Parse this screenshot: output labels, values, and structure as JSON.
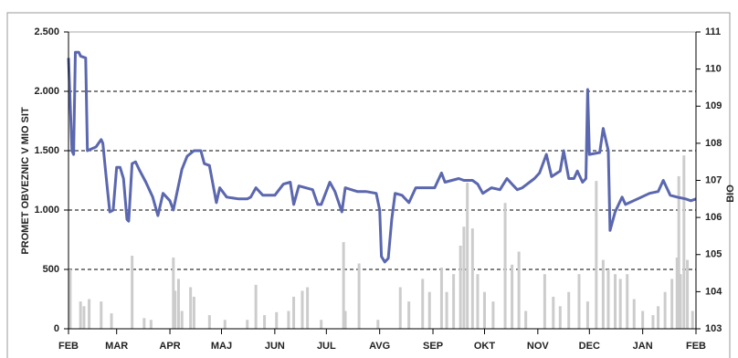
{
  "chart_data": {
    "type": "bar",
    "ylabel": "PROMET OBVEZNIC V MIO SIT",
    "y2label": "BIO",
    "xlim": [
      0,
      365
    ],
    "xticks": [
      {
        "value": 0,
        "label": "FEB"
      },
      {
        "value": 28,
        "label": "MAR"
      },
      {
        "value": 59,
        "label": "APR"
      },
      {
        "value": 89,
        "label": "MAJ"
      },
      {
        "value": 120,
        "label": "JUN"
      },
      {
        "value": 150,
        "label": "JUL"
      },
      {
        "value": 181,
        "label": "AVG"
      },
      {
        "value": 212,
        "label": "SEP"
      },
      {
        "value": 242,
        "label": "OKT"
      },
      {
        "value": 273,
        "label": "NOV"
      },
      {
        "value": 303,
        "label": "DEC"
      },
      {
        "value": 334,
        "label": "JAN"
      },
      {
        "value": 365,
        "label": "FEB"
      }
    ],
    "ylim": [
      0,
      2500
    ],
    "yticks": [
      0,
      500,
      {
        "value": 1000,
        "label": "1.000"
      },
      {
        "value": 1500,
        "label": "1.500"
      },
      {
        "value": 2000,
        "label": "2.000"
      },
      {
        "value": 2500,
        "label": "2.500"
      }
    ],
    "y2lim": [
      103,
      111
    ],
    "y2ticks": [
      103,
      104,
      105,
      106,
      107,
      108,
      109,
      110,
      111
    ],
    "grid": true,
    "series": [
      {
        "type": "bar",
        "color": "#cccccc",
        "x": [
          1,
          7,
          9,
          12,
          19,
          25,
          37,
          44,
          48,
          61,
          62,
          64,
          66,
          71,
          73,
          82,
          91,
          104,
          109,
          114,
          121,
          128,
          131,
          136,
          139,
          147,
          160,
          161,
          169,
          180,
          193,
          198,
          206,
          210,
          217,
          220,
          224,
          228,
          230,
          232,
          235,
          238,
          242,
          247,
          254,
          258,
          262,
          266,
          277,
          282,
          286,
          291,
          297,
          302,
          307,
          311,
          314,
          318,
          321,
          325,
          329,
          334,
          340,
          343,
          347,
          351,
          354,
          355,
          356,
          358,
          360,
          363
        ],
        "values": [
          500,
          230,
          190,
          250,
          230,
          130,
          615,
          90,
          75,
          600,
          320,
          420,
          150,
          350,
          270,
          115,
          75,
          75,
          370,
          115,
          140,
          150,
          270,
          320,
          350,
          75,
          730,
          150,
          550,
          75,
          350,
          230,
          420,
          310,
          515,
          310,
          460,
          700,
          860,
          1230,
          845,
          460,
          310,
          230,
          1060,
          540,
          650,
          150,
          460,
          270,
          190,
          310,
          460,
          230,
          1245,
          580,
          500,
          460,
          420,
          460,
          250,
          150,
          115,
          190,
          310,
          420,
          600,
          1285,
          460,
          1460,
          580,
          150
        ]
      },
      {
        "type": "line",
        "axis": "y2",
        "color": "#5b67ae",
        "x": [
          0,
          2,
          3,
          4,
          6,
          7,
          10,
          11,
          16,
          19,
          20,
          22,
          24,
          26,
          28,
          30,
          32,
          34,
          35,
          37,
          39,
          41,
          45,
          49,
          52,
          55,
          59,
          61,
          63,
          66,
          69,
          73,
          77,
          79,
          82,
          86,
          88,
          92,
          99,
          104,
          106,
          109,
          113,
          120,
          125,
          129,
          131,
          134,
          142,
          145,
          147,
          152,
          155,
          159,
          161,
          168,
          173,
          179,
          181,
          182,
          184,
          186,
          188,
          190,
          194,
          198,
          202,
          207,
          213,
          217,
          219,
          223,
          227,
          230,
          235,
          238,
          241,
          246,
          251,
          255,
          258,
          261,
          264,
          271,
          274,
          278,
          281,
          286,
          288,
          291,
          294,
          296,
          299,
          301,
          302,
          303,
          309,
          311,
          314,
          315,
          318,
          322,
          324,
          331,
          338,
          343,
          346,
          350,
          354,
          359,
          362,
          365
        ],
        "values": [
          110.3,
          107.8,
          107.7,
          110.45,
          110.45,
          110.35,
          110.3,
          107.8,
          107.9,
          108.1,
          108.0,
          107.05,
          106.15,
          106.2,
          107.35,
          107.35,
          107.05,
          105.95,
          105.9,
          107.45,
          107.5,
          107.3,
          106.95,
          106.55,
          106.05,
          106.65,
          106.45,
          106.2,
          106.65,
          107.3,
          107.65,
          107.8,
          107.8,
          107.45,
          107.4,
          106.4,
          106.8,
          106.55,
          106.5,
          106.5,
          106.55,
          106.8,
          106.6,
          106.6,
          106.9,
          106.95,
          106.35,
          106.85,
          106.75,
          106.35,
          106.35,
          106.95,
          106.7,
          106.15,
          106.8,
          106.7,
          106.7,
          106.65,
          106.2,
          104.95,
          104.8,
          104.9,
          105.95,
          106.65,
          106.6,
          106.4,
          106.8,
          106.8,
          106.8,
          107.2,
          106.95,
          107.0,
          107.05,
          107.0,
          107.0,
          106.9,
          106.65,
          106.8,
          106.75,
          107.05,
          106.9,
          106.75,
          106.8,
          107.05,
          107.2,
          107.7,
          107.1,
          107.25,
          107.8,
          107.05,
          107.05,
          107.25,
          106.95,
          107.05,
          109.45,
          107.7,
          107.75,
          108.4,
          107.8,
          105.65,
          106.15,
          106.55,
          106.35,
          106.5,
          106.65,
          106.7,
          107.0,
          106.6,
          106.55,
          106.5,
          106.45,
          106.5
        ]
      }
    ]
  }
}
